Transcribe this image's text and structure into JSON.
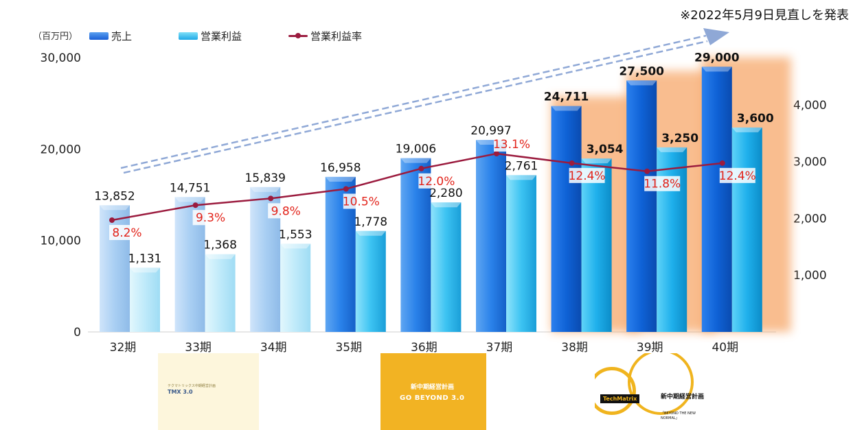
{
  "note": "※2022年5月9日見直しを発表",
  "unit_label": "（百万円）",
  "legend": {
    "sales": "売上",
    "op_profit": "営業利益",
    "op_margin": "営業利益率"
  },
  "colors": {
    "sales_light": "#a9cff3",
    "sales_dark": "#1a6fe0",
    "op_light": "#c3ecfa",
    "op_dark": "#22b6ee",
    "margin_line": "#9b1b3e",
    "margin_label": "#e2231a",
    "highlight": "#f7a86a"
  },
  "chart_data": {
    "type": "bar",
    "categories": [
      "32期",
      "33期",
      "34期",
      "35期",
      "36期",
      "37期",
      "38期",
      "39期",
      "40期"
    ],
    "series": [
      {
        "name": "売上",
        "axis": "left",
        "values": [
          13852,
          14751,
          15839,
          16958,
          19006,
          20997,
          24711,
          27500,
          29000
        ],
        "labels": [
          "13,852",
          "14,751",
          "15,839",
          "16,958",
          "19,006",
          "20,997",
          "24,711",
          "27,500",
          "29,000"
        ]
      },
      {
        "name": "営業利益",
        "axis": "right",
        "values": [
          1131,
          1368,
          1553,
          1778,
          2280,
          2761,
          3054,
          3250,
          3600
        ],
        "labels": [
          "1,131",
          "1,368",
          "1,553",
          "1,778",
          "2,280",
          "2,761",
          "3,054",
          "3,250",
          "3,600"
        ]
      },
      {
        "name": "営業利益率",
        "type": "line",
        "values": [
          8.2,
          9.3,
          9.8,
          10.5,
          12.0,
          13.1,
          12.4,
          11.8,
          12.4
        ],
        "labels": [
          "8.2%",
          "9.3%",
          "9.8%",
          "10.5%",
          "12.0%",
          "13.1%",
          "12.4%",
          "11.8%",
          "12.4%"
        ]
      }
    ],
    "left_axis": {
      "range": [
        0,
        30000
      ],
      "ticks": [
        "0",
        "10,000",
        "20,000",
        "30,000"
      ]
    },
    "right_axis": {
      "range": [
        0,
        5000
      ],
      "ticks": [
        "1,000",
        "2,000",
        "3,000",
        "4,000"
      ]
    },
    "highlighted_categories": [
      "38期",
      "39期",
      "40期"
    ]
  },
  "thumbnails": {
    "tmx": {
      "caption": "テクマトリックス中期経営計画",
      "title": "TMX 3.0"
    },
    "gb": {
      "caption": "新中期経営計画",
      "title": "GO BEYOND 3.0"
    },
    "newplan": {
      "logo": "TechMatrix",
      "caption": "新中期経営計画",
      "subtitle": "「BEYOND THE NEW NORMAL」"
    }
  }
}
